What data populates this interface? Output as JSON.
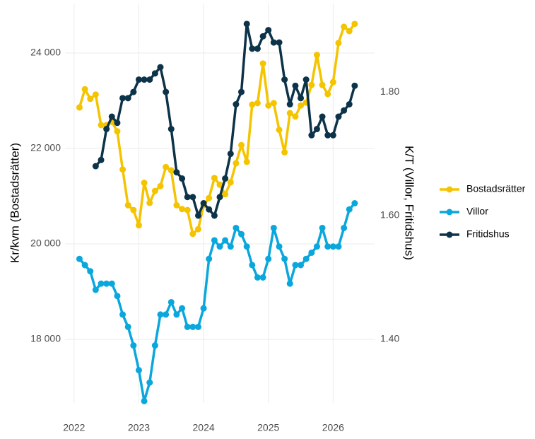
{
  "chart_data": {
    "type": "line",
    "x": [
      2022.083,
      2022.167,
      2022.25,
      2022.333,
      2022.417,
      2022.5,
      2022.583,
      2022.667,
      2022.75,
      2022.833,
      2022.917,
      2023.0,
      2023.083,
      2023.167,
      2023.25,
      2023.333,
      2023.417,
      2023.5,
      2023.583,
      2023.667,
      2023.75,
      2023.833,
      2023.917,
      2024.0,
      2024.083,
      2024.167,
      2024.25,
      2024.333,
      2024.417,
      2024.5,
      2024.583,
      2024.667,
      2024.75,
      2024.833,
      2024.917,
      2025.0,
      2025.083,
      2025.167,
      2025.25,
      2025.333,
      2025.417,
      2025.5,
      2025.583,
      2025.667,
      2025.75,
      2025.833,
      2025.917,
      2026.0,
      2026.083,
      2026.167,
      2026.25,
      2026.333
    ],
    "xlim": [
      2021.86,
      2026.64
    ],
    "xticks": [
      2022,
      2023,
      2024,
      2025,
      2026
    ],
    "ylabel": "Kr/kvm (Bostadsrätter)",
    "y2label": "K/T (Villor, Fritidshus)",
    "ylim": [
      16667,
      25037
    ],
    "yticks": [
      {
        "value": 18000,
        "label": "18 000"
      },
      {
        "value": 20000,
        "label": "20 000"
      },
      {
        "value": 22000,
        "label": "22 000"
      },
      {
        "value": 24000,
        "label": "24 000"
      }
    ],
    "y2lim": [
      1.297,
      1.943
    ],
    "y2ticks": [
      {
        "value": 1.4,
        "label": "1.40"
      },
      {
        "value": 1.6,
        "label": "1.60"
      },
      {
        "value": 1.8,
        "label": "1.80"
      }
    ],
    "grid": true,
    "legend": "right",
    "series": [
      {
        "name": "Bostadsrätter",
        "color": "#f5c400",
        "values": [
          22860,
          23240,
          23040,
          23130,
          22490,
          22490,
          22560,
          22360,
          21560,
          20810,
          20710,
          20390,
          21280,
          20860,
          21110,
          21210,
          21610,
          21540,
          20810,
          20730,
          20710,
          20210,
          20310,
          20810,
          20960,
          21380,
          21240,
          21040,
          21290,
          21690,
          22070,
          21720,
          22920,
          22950,
          23780,
          22900,
          22950,
          22390,
          21920,
          22740,
          22670,
          22900,
          22960,
          23330,
          23960,
          23330,
          23140,
          23390,
          24210,
          24550,
          24460,
          24610
        ]
      },
      {
        "name": "Villor",
        "color": "#0aa7dd",
        "axis": "y2",
        "values": [
          1.53,
          1.52,
          1.51,
          1.48,
          1.49,
          1.49,
          1.49,
          1.47,
          1.44,
          1.42,
          1.39,
          1.35,
          1.3,
          1.33,
          1.39,
          1.44,
          1.44,
          1.46,
          1.44,
          1.45,
          1.42,
          1.42,
          1.42,
          1.45,
          1.53,
          1.56,
          1.55,
          1.56,
          1.55,
          1.58,
          1.57,
          1.55,
          1.52,
          1.5,
          1.5,
          1.53,
          1.58,
          1.55,
          1.53,
          1.49,
          1.52,
          1.52,
          1.53,
          1.54,
          1.55,
          1.58,
          1.55,
          1.55,
          1.55,
          1.58,
          1.61,
          1.62
        ]
      },
      {
        "name": "Fritidshus",
        "color": "#0d3349",
        "axis": "y2",
        "values": [
          null,
          null,
          null,
          1.68,
          1.69,
          1.74,
          1.76,
          1.75,
          1.79,
          1.79,
          1.8,
          1.82,
          1.82,
          1.82,
          1.83,
          1.84,
          1.8,
          1.74,
          1.67,
          1.66,
          1.63,
          1.63,
          1.6,
          1.62,
          1.61,
          1.6,
          1.63,
          1.66,
          1.7,
          1.78,
          1.8,
          1.91,
          1.87,
          1.87,
          1.89,
          1.9,
          1.88,
          1.88,
          1.82,
          1.78,
          1.81,
          1.79,
          1.82,
          1.73,
          1.74,
          1.76,
          1.73,
          1.73,
          1.76,
          1.77,
          1.78,
          1.81
        ]
      }
    ]
  }
}
